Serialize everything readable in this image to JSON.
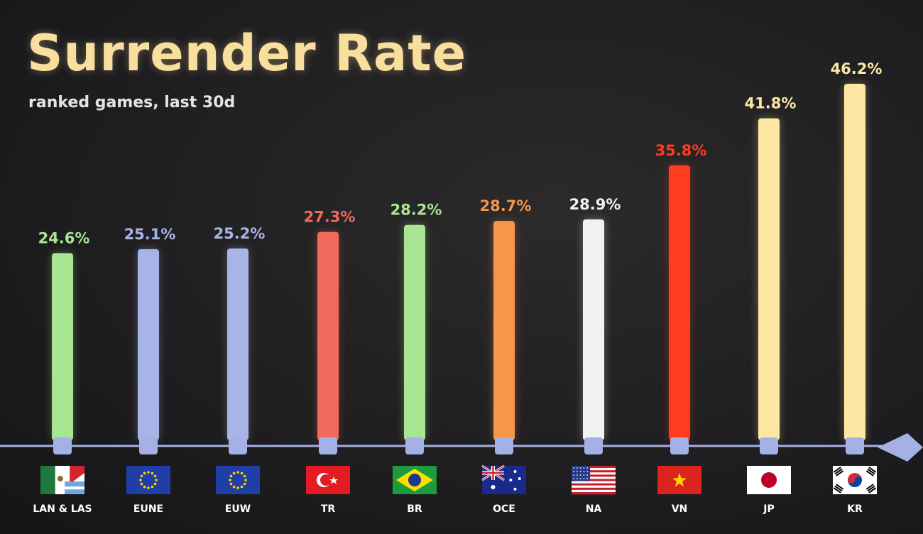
{
  "chart_data": {
    "type": "bar",
    "title": "Surrender Rate",
    "subtitle": "ranked games, last 30d",
    "xlabel": "",
    "ylabel": "",
    "ylim": [
      0,
      46.2
    ],
    "categories": [
      "LAN & LAS",
      "EUNE",
      "EUW",
      "TR",
      "BR",
      "OCE",
      "NA",
      "VN",
      "JP",
      "KR"
    ],
    "values": [
      24.6,
      25.1,
      25.2,
      27.3,
      28.2,
      28.7,
      28.9,
      35.8,
      41.8,
      46.2
    ],
    "value_labels": [
      "24.6%",
      "25.1%",
      "25.2%",
      "27.3%",
      "28.2%",
      "28.7%",
      "28.9%",
      "35.8%",
      "41.8%",
      "46.2%"
    ],
    "colors": [
      "#a8e694",
      "#a8b4e8",
      "#a8b4e8",
      "#f26a5b",
      "#a8e694",
      "#f5964a",
      "#f2f2f2",
      "#ff3c1e",
      "#fde7a3",
      "#fde7a3"
    ],
    "flags": [
      "mexico-flag-icon",
      "eu-flag-icon",
      "eu-flag-icon",
      "turkey-flag-icon",
      "brazil-flag-icon",
      "australia-flag-icon",
      "usa-flag-icon",
      "vietnam-flag-icon",
      "japan-flag-icon",
      "korea-flag-icon"
    ],
    "axis_color": "#a4b0e6"
  }
}
